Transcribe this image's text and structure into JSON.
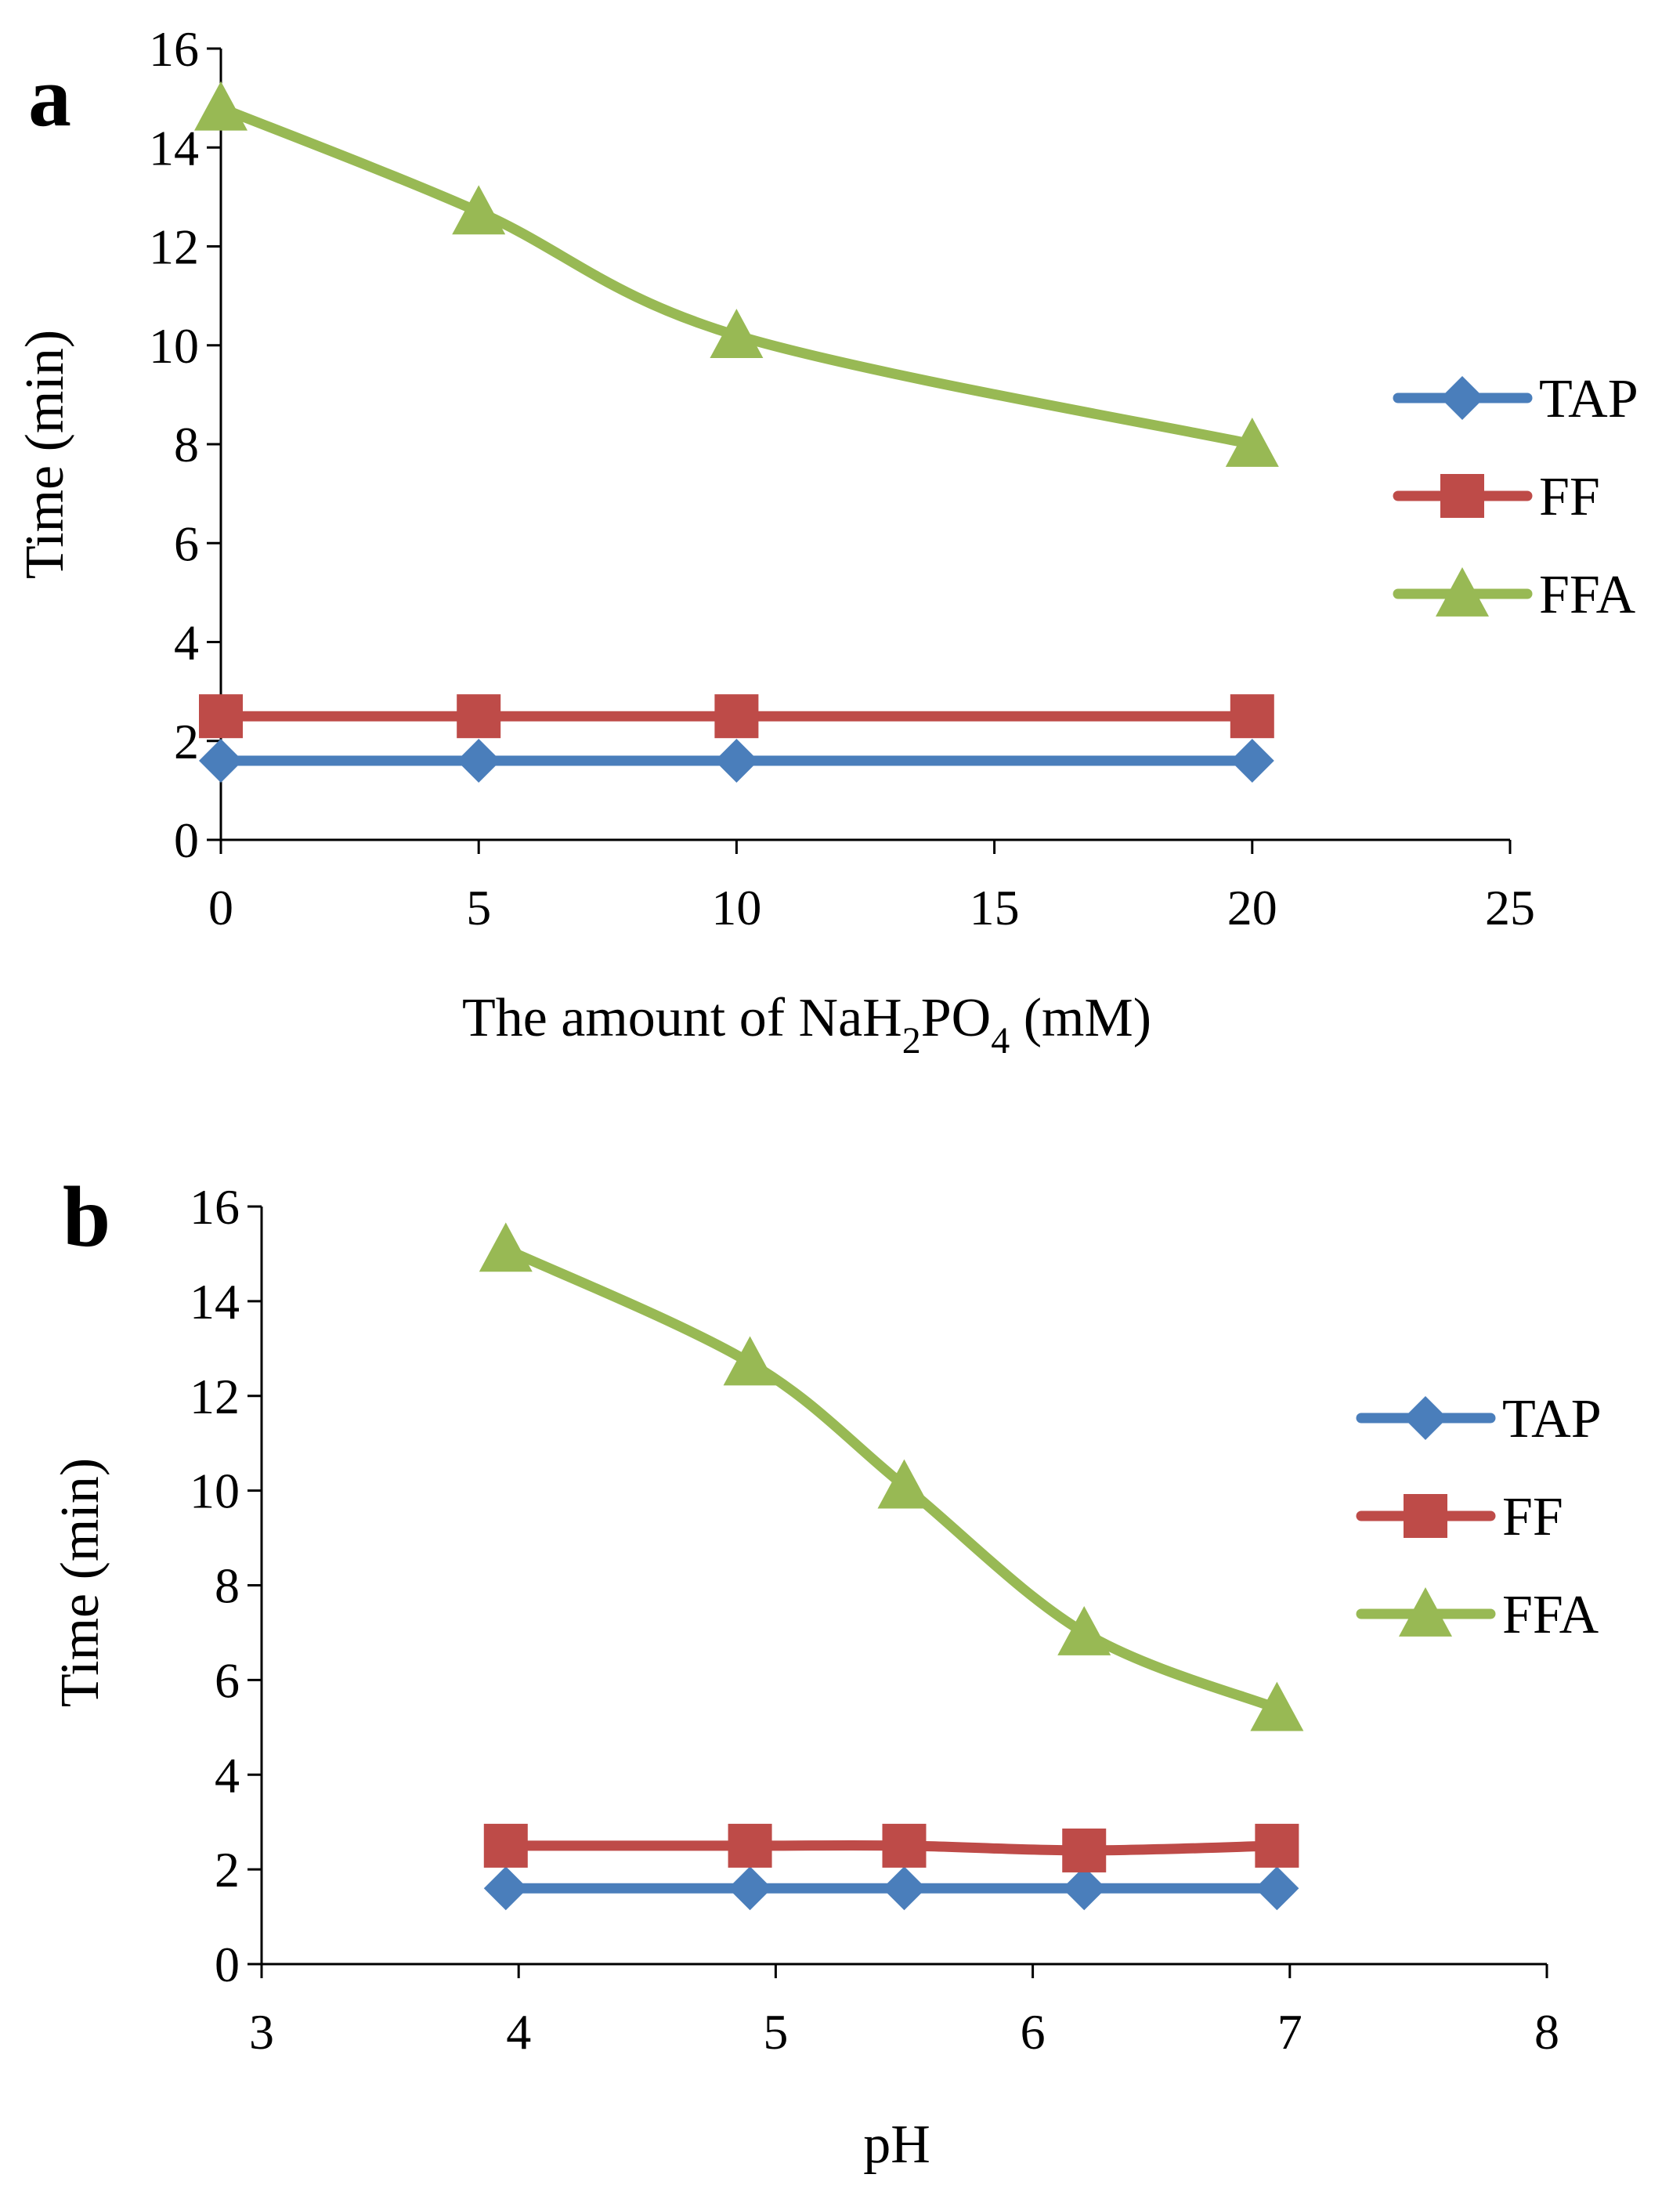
{
  "chart_data": [
    {
      "type": "line",
      "panel_label": "a",
      "title": "",
      "xlabel_parts": [
        "The amount of NaH",
        "2",
        "PO",
        "4",
        " (mM)"
      ],
      "ylabel": "Time (min)",
      "xlim": [
        0,
        25
      ],
      "ylim": [
        0,
        16
      ],
      "xticks": [
        "0",
        "5",
        "10",
        "15",
        "20",
        "25"
      ],
      "yticks": [
        "0",
        "2",
        "4",
        "6",
        "8",
        "10",
        "12",
        "14",
        "16"
      ],
      "x": [
        0,
        5,
        10,
        20
      ],
      "series": [
        {
          "name": "TAP",
          "values": [
            1.6,
            1.6,
            1.6,
            1.6
          ],
          "color": "#4a7ebb",
          "marker": "diamond"
        },
        {
          "name": "FF",
          "values": [
            2.5,
            2.5,
            2.5,
            2.5
          ],
          "color": "#be4b48",
          "marker": "square"
        },
        {
          "name": "FFA",
          "values": [
            14.8,
            12.7,
            10.2,
            8.0
          ],
          "color": "#98b954",
          "marker": "triangle"
        }
      ],
      "legend": "right",
      "grid": false
    },
    {
      "type": "line",
      "panel_label": "b",
      "title": "",
      "xlabel_parts": [
        "pH"
      ],
      "ylabel": "Time (min)",
      "xlim": [
        3,
        8
      ],
      "ylim": [
        0,
        16
      ],
      "xticks": [
        "3",
        "4",
        "5",
        "6",
        "7",
        "8"
      ],
      "yticks": [
        "0",
        "2",
        "4",
        "6",
        "8",
        "10",
        "12",
        "14",
        "16"
      ],
      "x": [
        3.95,
        4.9,
        5.5,
        6.2,
        6.95
      ],
      "series": [
        {
          "name": "TAP",
          "values": [
            1.6,
            1.6,
            1.6,
            1.6,
            1.6
          ],
          "color": "#4a7ebb",
          "marker": "diamond"
        },
        {
          "name": "FF",
          "values": [
            2.5,
            2.5,
            2.5,
            2.4,
            2.5
          ],
          "color": "#be4b48",
          "marker": "square"
        },
        {
          "name": "FFA",
          "values": [
            15.1,
            12.7,
            10.1,
            7.0,
            5.4
          ],
          "color": "#98b954",
          "marker": "triangle"
        }
      ],
      "legend": "right",
      "grid": false
    }
  ]
}
